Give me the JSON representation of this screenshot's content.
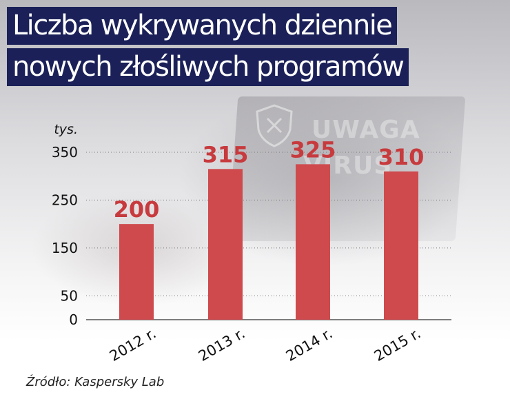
{
  "title": {
    "line1": "Liczba wykrywanych dziennie",
    "line2": "nowych złośliwych programów"
  },
  "source": "Źródło: Kaspersky Lab",
  "background": {
    "watermark_line1": "UWAGA",
    "watermark_line2": "VIRUS",
    "shield_icon": "shield-x-icon"
  },
  "colors": {
    "title_band": "#1b2158",
    "bar": "#cf4a4d",
    "value_label": "#c73a3d",
    "axis_text": "#111111",
    "grid": "#7a7a7a"
  },
  "chart_data": {
    "type": "bar",
    "title": "Liczba wykrywanych dziennie nowych złośliwych programów",
    "ylabel": "tys.",
    "xlabel": "",
    "categories": [
      "2012 r.",
      "2013 r.",
      "2014 r.",
      "2015 r."
    ],
    "values": [
      200,
      315,
      325,
      310
    ],
    "ylim": [
      0,
      350
    ],
    "yticks": [
      0,
      50,
      150,
      250,
      350
    ],
    "grid": "dotted-horizontal",
    "data_labels": true,
    "legend": "none"
  }
}
